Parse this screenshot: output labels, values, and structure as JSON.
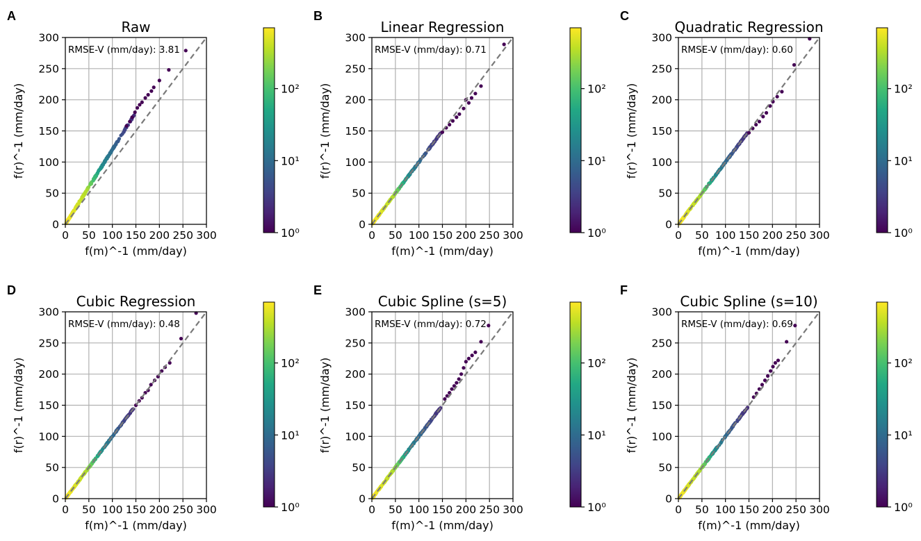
{
  "figure": {
    "xlabel": "f(m)^-1 (mm/day)",
    "ylabel": "f(r)^-1 (mm/day)",
    "annotation_prefix": "RMSE-V (mm/day): ",
    "colorbar": {
      "scale": "log",
      "range": [
        1,
        700
      ],
      "tick_labels": [
        "10⁰",
        "10¹",
        "10²"
      ]
    },
    "colors": {
      "reference_line": "#7a7a7a",
      "grid": "#b0b0b0",
      "axis": "#000000"
    }
  },
  "chart_data": [
    {
      "panel": "A",
      "title": "Raw",
      "type": "scatter",
      "rmse": "3.81",
      "xlim": [
        0,
        300
      ],
      "ylim": [
        0,
        300
      ],
      "xticks": [
        "0",
        "50",
        "100",
        "150",
        "200",
        "250",
        "300"
      ],
      "yticks": [
        "0",
        "50",
        "100",
        "150",
        "200",
        "250",
        "300"
      ],
      "reference_line": [
        [
          0,
          0
        ],
        [
          300,
          300
        ]
      ],
      "fit": {
        "kind": "raw",
        "slope": 1.2
      },
      "sparse_points": [
        [
          130,
          158
        ],
        [
          137,
          165
        ],
        [
          142,
          172
        ],
        [
          148,
          180
        ],
        [
          153,
          187
        ],
        [
          158,
          192
        ],
        [
          163,
          196
        ],
        [
          170,
          203
        ],
        [
          176,
          208
        ],
        [
          183,
          214
        ],
        [
          188,
          220
        ],
        [
          200,
          231
        ],
        [
          220,
          248
        ],
        [
          256,
          279
        ]
      ]
    },
    {
      "panel": "B",
      "title": "Linear Regression",
      "type": "scatter",
      "rmse": "0.71",
      "xlim": [
        0,
        300
      ],
      "ylim": [
        0,
        300
      ],
      "xticks": [
        "0",
        "50",
        "100",
        "150",
        "200",
        "250",
        "300"
      ],
      "yticks": [
        "0",
        "50",
        "100",
        "150",
        "200",
        "250",
        "300"
      ],
      "reference_line": [
        [
          0,
          0
        ],
        [
          300,
          300
        ]
      ],
      "fit": {
        "kind": "linear"
      },
      "sparse_points": [
        [
          150,
          148
        ],
        [
          158,
          155
        ],
        [
          165,
          160
        ],
        [
          172,
          166
        ],
        [
          180,
          172
        ],
        [
          186,
          177
        ],
        [
          195,
          186
        ],
        [
          200,
          200
        ],
        [
          206,
          195
        ],
        [
          212,
          203
        ],
        [
          220,
          210
        ],
        [
          232,
          222
        ],
        [
          281,
          289
        ]
      ]
    },
    {
      "panel": "C",
      "title": "Quadratic Regression",
      "type": "scatter",
      "rmse": "0.60",
      "xlim": [
        0,
        300
      ],
      "ylim": [
        0,
        300
      ],
      "xticks": [
        "0",
        "50",
        "100",
        "150",
        "200",
        "250",
        "300"
      ],
      "yticks": [
        "0",
        "50",
        "100",
        "150",
        "200",
        "250",
        "300"
      ],
      "reference_line": [
        [
          0,
          0
        ],
        [
          300,
          300
        ]
      ],
      "fit": {
        "kind": "quadratic"
      },
      "sparse_points": [
        [
          150,
          147
        ],
        [
          158,
          154
        ],
        [
          165,
          160
        ],
        [
          172,
          165
        ],
        [
          180,
          173
        ],
        [
          187,
          179
        ],
        [
          195,
          190
        ],
        [
          201,
          197
        ],
        [
          210,
          205
        ],
        [
          220,
          213
        ],
        [
          246,
          256
        ],
        [
          279,
          298
        ]
      ]
    },
    {
      "panel": "D",
      "title": "Cubic Regression",
      "type": "scatter",
      "rmse": "0.48",
      "xlim": [
        0,
        300
      ],
      "ylim": [
        0,
        300
      ],
      "xticks": [
        "0",
        "50",
        "100",
        "150",
        "200",
        "250",
        "300"
      ],
      "yticks": [
        "0",
        "50",
        "100",
        "150",
        "200",
        "250",
        "300"
      ],
      "reference_line": [
        [
          0,
          0
        ],
        [
          300,
          300
        ]
      ],
      "fit": {
        "kind": "cubic"
      },
      "sparse_points": [
        [
          150,
          150
        ],
        [
          157,
          157
        ],
        [
          163,
          162
        ],
        [
          170,
          170
        ],
        [
          176,
          174
        ],
        [
          182,
          183
        ],
        [
          190,
          190
        ],
        [
          197,
          196
        ],
        [
          205,
          205
        ],
        [
          212,
          211
        ],
        [
          222,
          218
        ],
        [
          246,
          257
        ],
        [
          278,
          298
        ]
      ]
    },
    {
      "panel": "E",
      "title": "Cubic Spline (s=5)",
      "type": "scatter",
      "rmse": "0.72",
      "xlim": [
        0,
        300
      ],
      "ylim": [
        0,
        300
      ],
      "xticks": [
        "0",
        "50",
        "100",
        "150",
        "200",
        "250",
        "300"
      ],
      "yticks": [
        "0",
        "50",
        "100",
        "150",
        "200",
        "250",
        "300"
      ],
      "reference_line": [
        [
          0,
          0
        ],
        [
          300,
          300
        ]
      ],
      "fit": {
        "kind": "spline5"
      },
      "sparse_points": [
        [
          155,
          160
        ],
        [
          160,
          165
        ],
        [
          165,
          170
        ],
        [
          170,
          176
        ],
        [
          175,
          181
        ],
        [
          180,
          186
        ],
        [
          185,
          192
        ],
        [
          190,
          200
        ],
        [
          195,
          210
        ],
        [
          200,
          220
        ],
        [
          206,
          225
        ],
        [
          213,
          230
        ],
        [
          220,
          235
        ],
        [
          232,
          252
        ],
        [
          248,
          278
        ]
      ]
    },
    {
      "panel": "F",
      "title": "Cubic Spline (s=10)",
      "type": "scatter",
      "rmse": "0.69",
      "xlim": [
        0,
        300
      ],
      "ylim": [
        0,
        300
      ],
      "xticks": [
        "0",
        "50",
        "100",
        "150",
        "200",
        "250",
        "300"
      ],
      "yticks": [
        "0",
        "50",
        "100",
        "150",
        "200",
        "250",
        "300"
      ],
      "reference_line": [
        [
          0,
          0
        ],
        [
          300,
          300
        ]
      ],
      "fit": {
        "kind": "spline10"
      },
      "sparse_points": [
        [
          160,
          163
        ],
        [
          166,
          169
        ],
        [
          172,
          176
        ],
        [
          178,
          183
        ],
        [
          184,
          190
        ],
        [
          190,
          197
        ],
        [
          196,
          205
        ],
        [
          201,
          212
        ],
        [
          206,
          218
        ],
        [
          212,
          222
        ],
        [
          230,
          252
        ],
        [
          248,
          278
        ]
      ]
    }
  ]
}
